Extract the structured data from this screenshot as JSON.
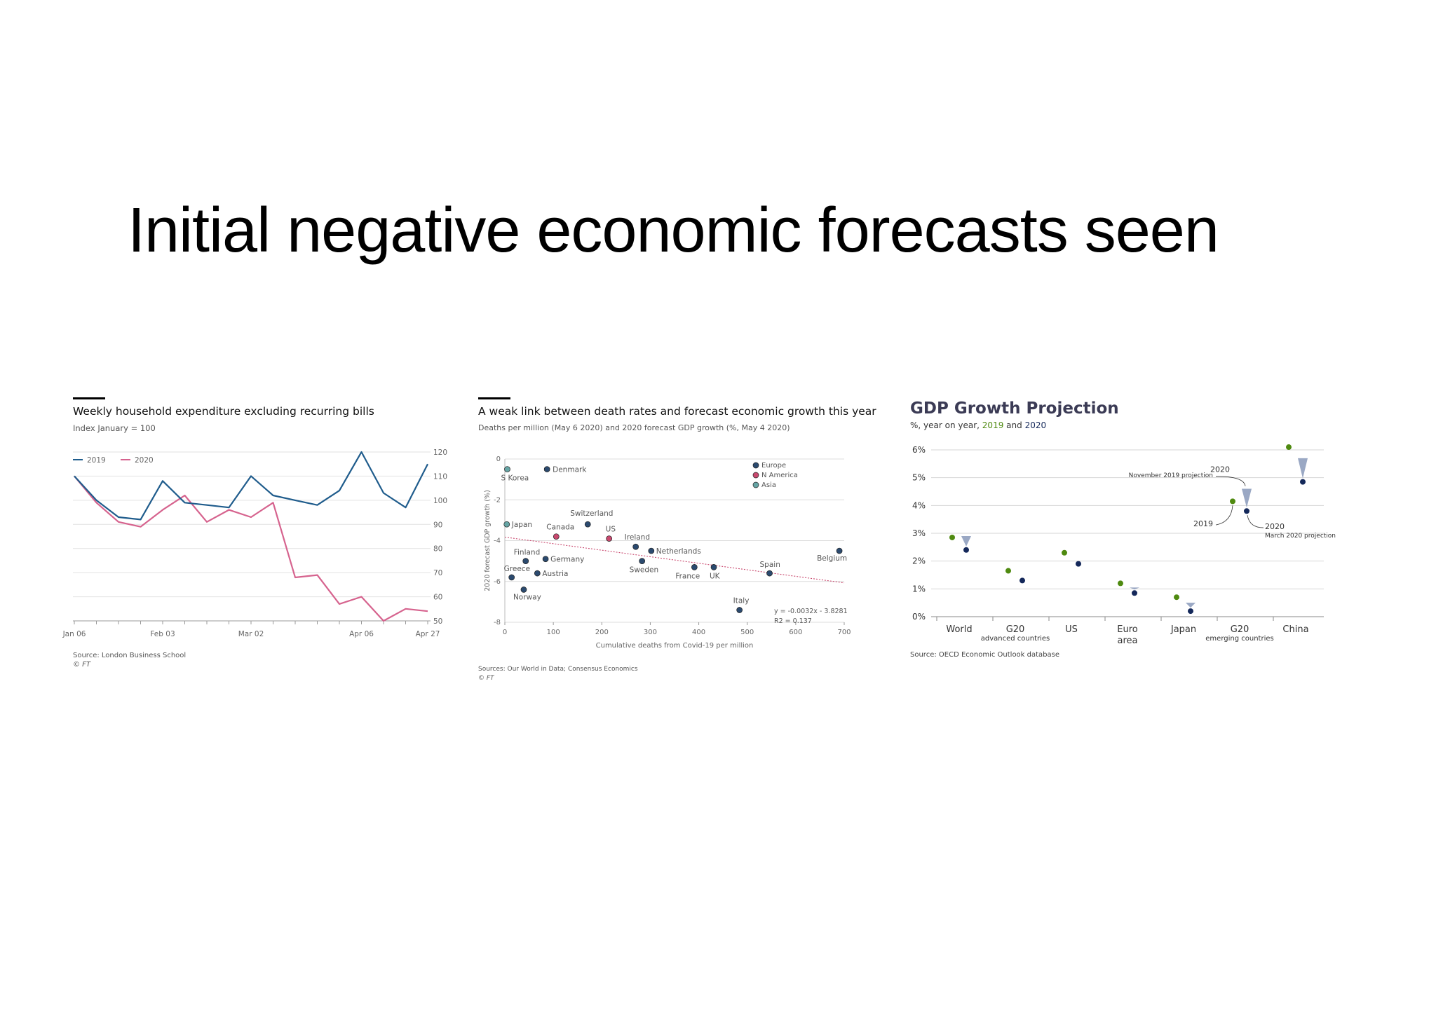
{
  "slide": {
    "title": "Initial negative economic forecasts seen"
  },
  "colors": {
    "series_2019": "#1f5c8c",
    "series_2020": "#d6638e",
    "oecd_2019": "#4f8a10",
    "oecd_2020": "#14285a",
    "oecd_arrow": "#9aa8c4"
  },
  "chart_data": [
    {
      "type": "line",
      "title": "Weekly household expenditure excluding recurring bills",
      "subtitle": "Index January = 100",
      "source": "Source: London Business School",
      "credit": "© FT",
      "x_ticks": [
        "Jan 06",
        "Feb 03",
        "Mar 02",
        "Apr 06",
        "Apr 27"
      ],
      "x_tick_positions": [
        0,
        4,
        8,
        13,
        16
      ],
      "y_ticks": [
        50,
        60,
        70,
        80,
        90,
        100,
        110,
        120
      ],
      "ylim": [
        50,
        120
      ],
      "legend_position": "top-left",
      "series": [
        {
          "name": "2019",
          "values": [
            110,
            100,
            93,
            92,
            108,
            99,
            98,
            97,
            110,
            102,
            100,
            98,
            104,
            120,
            103,
            97,
            115
          ]
        },
        {
          "name": "2020",
          "values": [
            110,
            99,
            91,
            89,
            96,
            102,
            91,
            96,
            93,
            99,
            68,
            69,
            57,
            60,
            50,
            55,
            54
          ]
        }
      ]
    },
    {
      "type": "scatter",
      "title": "A weak link between death rates and forecast economic growth this year",
      "subtitle": "Deaths per million (May 6 2020) and 2020 forecast GDP growth (%, May 4 2020)",
      "xlabel": "Cumulative deaths from Covid-19 per million",
      "ylabel": "2020 forecast GDP growth (%)",
      "xlim": [
        0,
        700
      ],
      "ylim": [
        -8,
        0
      ],
      "x_ticks": [
        0,
        100,
        200,
        300,
        400,
        500,
        600,
        700
      ],
      "y_ticks": [
        0,
        -2,
        -4,
        -6,
        -8
      ],
      "source": "Sources: Our World in Data; Consensus Economics",
      "credit": "© FT",
      "legend_position": "top-right",
      "legend": [
        {
          "name": "Europe",
          "color": "#2b4a6f"
        },
        {
          "name": "N America",
          "color": "#c9496f"
        },
        {
          "name": "Asia",
          "color": "#66a5a5"
        }
      ],
      "trendline": {
        "equation": "y = -0.0032x - 3.8281",
        "r2": "R2 = 0.137"
      },
      "points": [
        {
          "label": "S Korea",
          "x": 5,
          "y": -0.5,
          "group": "Asia"
        },
        {
          "label": "Denmark",
          "x": 87,
          "y": -0.5,
          "group": "Europe"
        },
        {
          "label": "Japan",
          "x": 4,
          "y": -3.2,
          "group": "Asia"
        },
        {
          "label": "Switzerland",
          "x": 171,
          "y": -3.2,
          "group": "Europe"
        },
        {
          "label": "Canada",
          "x": 106,
          "y": -3.8,
          "group": "N America"
        },
        {
          "label": "US",
          "x": 215,
          "y": -3.9,
          "group": "N America"
        },
        {
          "label": "Ireland",
          "x": 270,
          "y": -4.3,
          "group": "Europe"
        },
        {
          "label": "Netherlands",
          "x": 302,
          "y": -4.5,
          "group": "Europe"
        },
        {
          "label": "Belgium",
          "x": 690,
          "y": -4.5,
          "group": "Europe"
        },
        {
          "label": "Finland",
          "x": 43,
          "y": -5.0,
          "group": "Europe"
        },
        {
          "label": "Germany",
          "x": 84,
          "y": -4.9,
          "group": "Europe"
        },
        {
          "label": "Sweden",
          "x": 283,
          "y": -5.0,
          "group": "Europe"
        },
        {
          "label": "Greece",
          "x": 14,
          "y": -5.8,
          "group": "Europe"
        },
        {
          "label": "Austria",
          "x": 67,
          "y": -5.6,
          "group": "Europe"
        },
        {
          "label": "France",
          "x": 391,
          "y": -5.3,
          "group": "Europe"
        },
        {
          "label": "UK",
          "x": 431,
          "y": -5.3,
          "group": "Europe"
        },
        {
          "label": "Spain",
          "x": 546,
          "y": -5.6,
          "group": "Europe"
        },
        {
          "label": "Norway",
          "x": 39,
          "y": -6.4,
          "group": "Europe"
        },
        {
          "label": "Italy",
          "x": 484,
          "y": -7.4,
          "group": "Europe"
        }
      ]
    },
    {
      "type": "scatter",
      "title": "GDP Growth Projection",
      "subtitle_prefix": "%, year on year,",
      "subtitle_year_a": "2019",
      "subtitle_and": "and",
      "subtitle_year_b": "2020",
      "source": "Source: OECD Economic Outlook database",
      "y_ticks": [
        "0%",
        "1%",
        "2%",
        "3%",
        "4%",
        "5%",
        "6%"
      ],
      "ylim": [
        0,
        6
      ],
      "categories": [
        {
          "line1": "World",
          "line2": ""
        },
        {
          "line1": "G20",
          "line2": "advanced countries"
        },
        {
          "line1": "US",
          "line2": ""
        },
        {
          "line1": "Euro",
          "line2": "area"
        },
        {
          "line1": "Japan",
          "line2": ""
        },
        {
          "line1": "G20",
          "line2": "emerging countries"
        },
        {
          "line1": "China",
          "line2": ""
        }
      ],
      "series": [
        {
          "name": "2019",
          "values": [
            2.85,
            1.65,
            2.3,
            1.2,
            0.7,
            4.15,
            6.1
          ]
        },
        {
          "name": "2020",
          "values": [
            2.4,
            1.3,
            1.9,
            0.85,
            0.2,
            3.8,
            4.85
          ]
        },
        {
          "name": "November 2019 projection",
          "values": [
            2.9,
            1.4,
            1.95,
            1.05,
            0.5,
            4.6,
            5.7
          ]
        }
      ],
      "annotations": {
        "top_year": "2020",
        "top_text": "November 2019 projection",
        "left_year": "2019",
        "bottom_year": "2020",
        "bottom_text": "March 2020 projection"
      }
    }
  ]
}
